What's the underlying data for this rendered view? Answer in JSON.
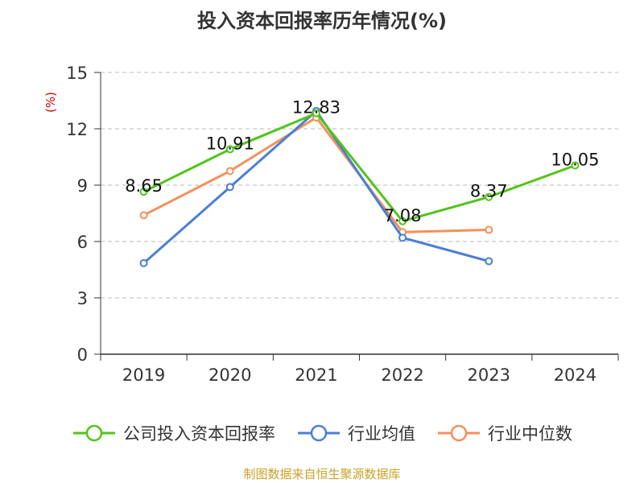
{
  "title": "投入资本回报率历年情况(%)",
  "source": "制图数据来自恒生聚源数据库",
  "chart_data": {
    "type": "line",
    "title": "投入资本回报率历年情况(%)",
    "ylabel": "(%)",
    "xlabel": "",
    "categories": [
      "2019",
      "2020",
      "2021",
      "2022",
      "2023",
      "2024"
    ],
    "ylim": [
      0,
      15
    ],
    "yticks": [
      0,
      3,
      6,
      9,
      12,
      15
    ],
    "grid": true,
    "legend_position": "bottom",
    "series": [
      {
        "name": "公司投入资本回报率",
        "color": "#52c41a",
        "values": [
          8.65,
          10.91,
          12.83,
          7.08,
          8.37,
          10.05
        ],
        "labels": [
          "8.65",
          "10.91",
          "12.83",
          "7.08",
          "8.37",
          "10.05"
        ]
      },
      {
        "name": "行业均值",
        "color": "#4a7fd4",
        "values": [
          4.85,
          8.9,
          12.95,
          6.2,
          4.95,
          null
        ]
      },
      {
        "name": "行业中位数",
        "color": "#f5905a",
        "values": [
          7.4,
          9.75,
          12.6,
          6.5,
          6.62,
          null
        ]
      }
    ]
  }
}
